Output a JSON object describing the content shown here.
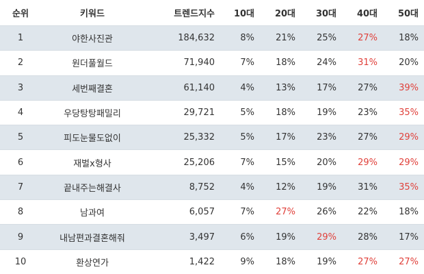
{
  "header": {
    "rank": "순위",
    "keyword": "키워드",
    "trend_count": "트렌드지수",
    "age10": "10대",
    "age20": "20대",
    "age30": "30대",
    "age40": "40대",
    "age50": "50대"
  },
  "highlight_color": "#e0403a",
  "rows": [
    {
      "rank": "1",
      "keyword": "야한사진관",
      "trend": "184,632",
      "age10": "8%",
      "age20": "21%",
      "age30": "25%",
      "age40": "27%",
      "age50": "18%",
      "highlight": "age40"
    },
    {
      "rank": "2",
      "keyword": "원더풀월드",
      "trend": "71,940",
      "age10": "7%",
      "age20": "18%",
      "age30": "24%",
      "age40": "31%",
      "age50": "20%",
      "highlight": "age40"
    },
    {
      "rank": "3",
      "keyword": "세번째결혼",
      "trend": "61,140",
      "age10": "4%",
      "age20": "13%",
      "age30": "17%",
      "age40": "27%",
      "age50": "39%",
      "highlight": "age50"
    },
    {
      "rank": "4",
      "keyword": "우당탕탕패밀리",
      "trend": "29,721",
      "age10": "5%",
      "age20": "18%",
      "age30": "19%",
      "age40": "23%",
      "age50": "35%",
      "highlight": "age50"
    },
    {
      "rank": "5",
      "keyword": "피도눈물도없이",
      "trend": "25,332",
      "age10": "5%",
      "age20": "17%",
      "age30": "23%",
      "age40": "27%",
      "age50": "29%",
      "highlight": "age50"
    },
    {
      "rank": "6",
      "keyword": "재벌x형사",
      "trend": "25,206",
      "age10": "7%",
      "age20": "15%",
      "age30": "20%",
      "age40": "29%",
      "age50": "29%",
      "highlight": "age40,age50"
    },
    {
      "rank": "7",
      "keyword": "끝내주는해결사",
      "trend": "8,752",
      "age10": "4%",
      "age20": "12%",
      "age30": "19%",
      "age40": "31%",
      "age50": "35%",
      "highlight": "age50"
    },
    {
      "rank": "8",
      "keyword": "남과여",
      "trend": "6,057",
      "age10": "7%",
      "age20": "27%",
      "age30": "26%",
      "age40": "22%",
      "age50": "18%",
      "highlight": "age20"
    },
    {
      "rank": "9",
      "keyword": "내남편과결혼해줘",
      "trend": "3,497",
      "age10": "6%",
      "age20": "19%",
      "age30": "29%",
      "age40": "28%",
      "age50": "17%",
      "highlight": "age30"
    },
    {
      "rank": "10",
      "keyword": "환상연가",
      "trend": "1,422",
      "age10": "9%",
      "age20": "18%",
      "age30": "19%",
      "age40": "27%",
      "age50": "27%",
      "highlight": "age40,age50"
    }
  ]
}
